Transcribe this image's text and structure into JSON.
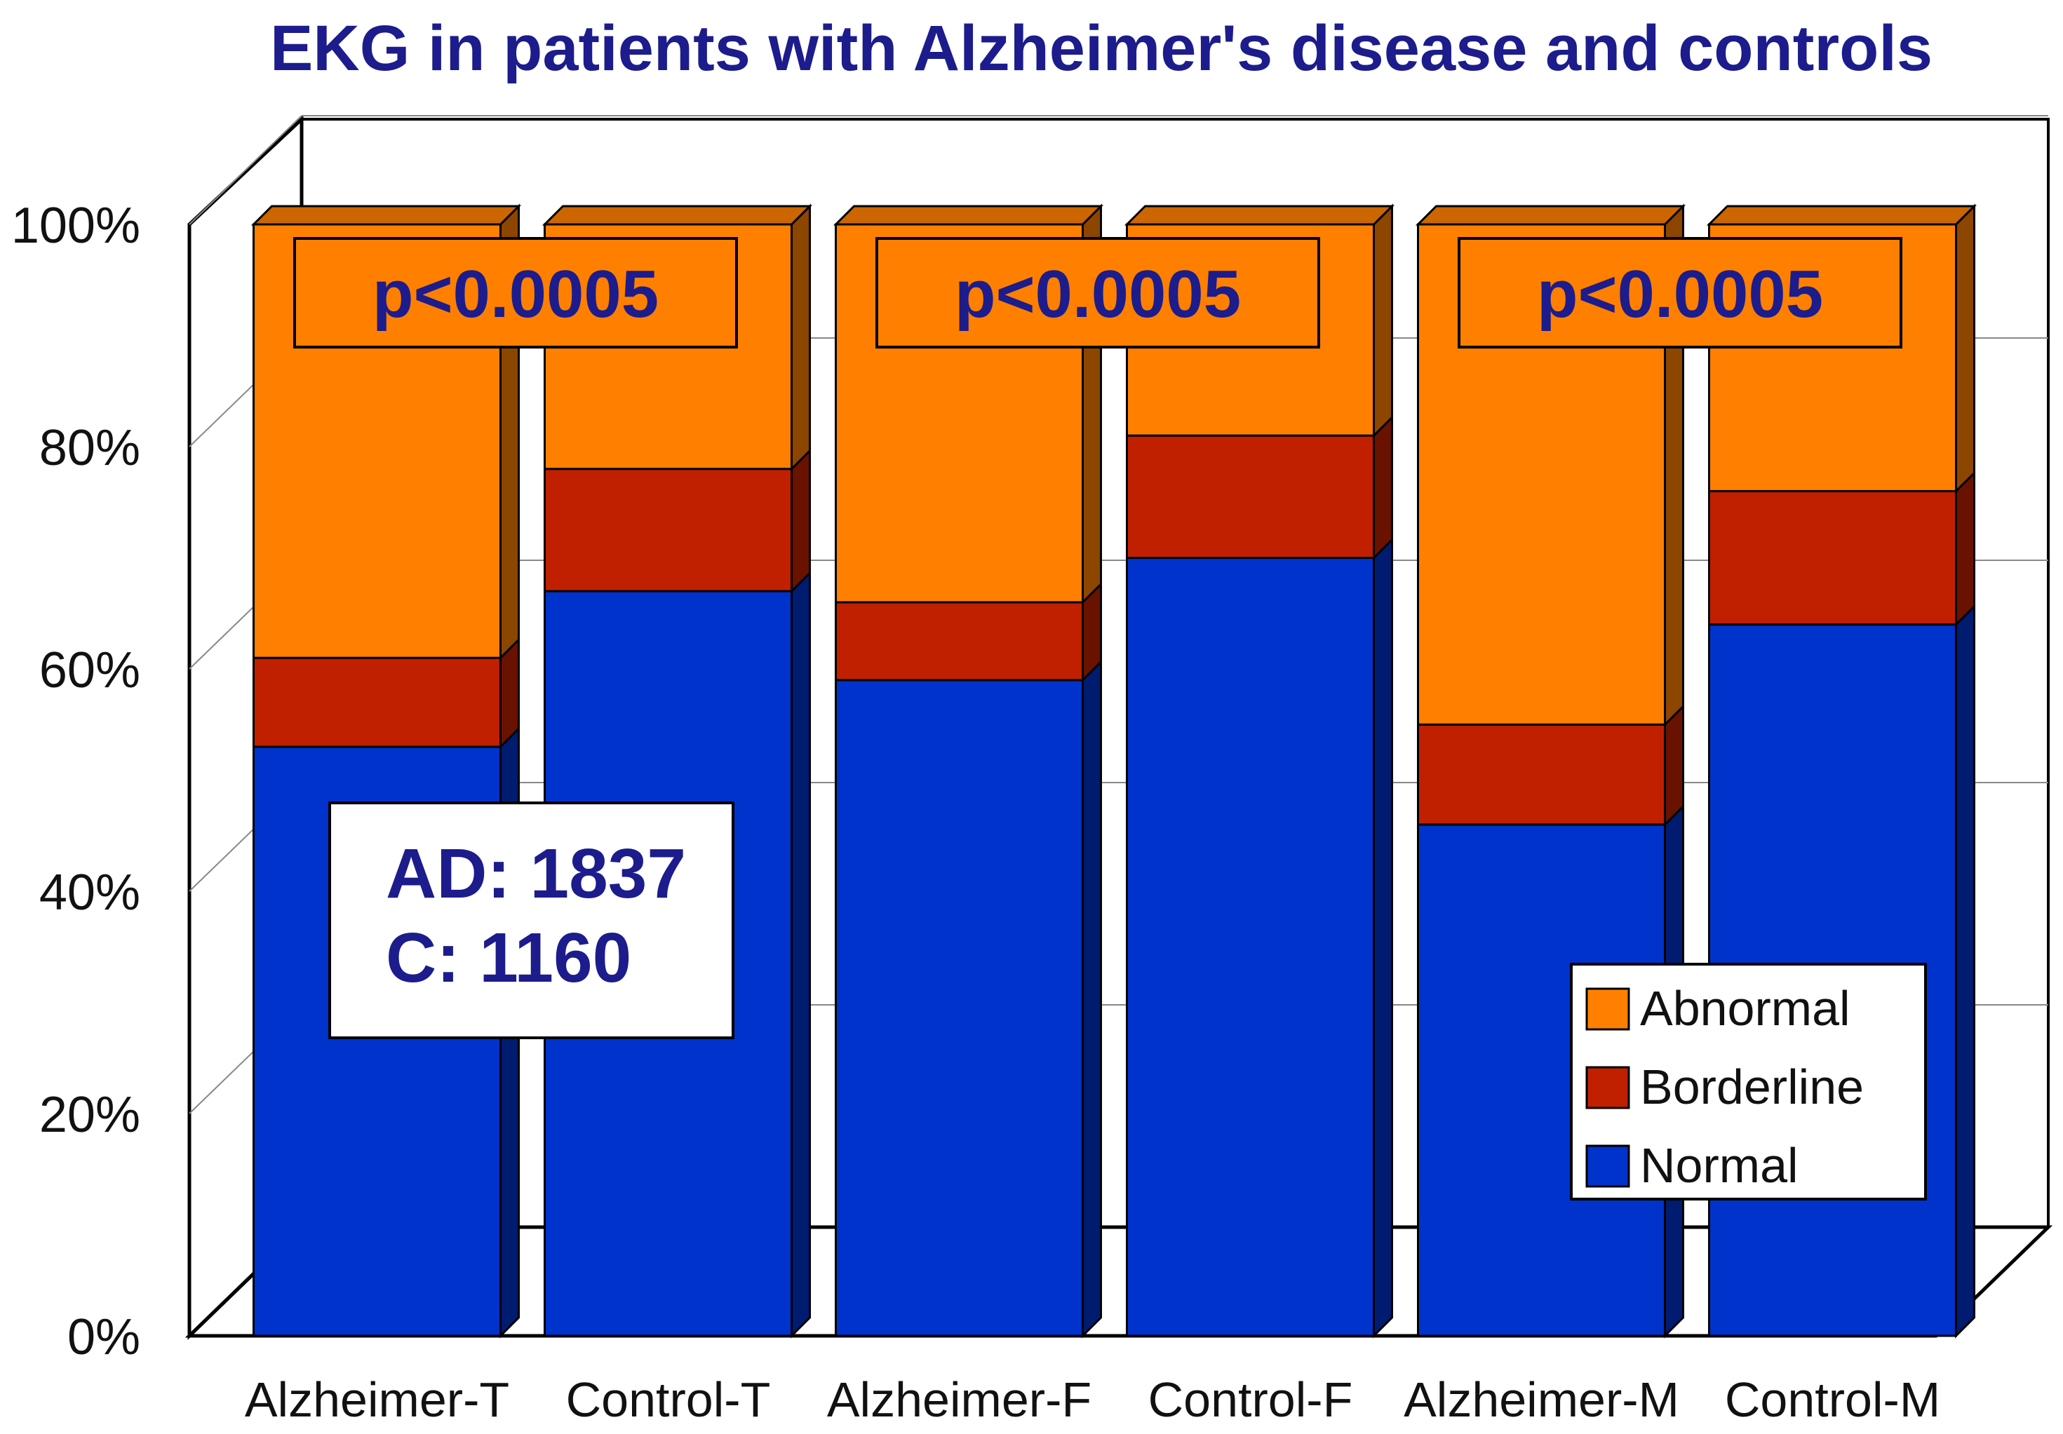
{
  "chart_data": {
    "type": "bar",
    "stacked": true,
    "percent": true,
    "title": "EKG in patients with Alzheimer's disease and controls",
    "categories": [
      "Alzheimer-T",
      "Control-T",
      "Alzheimer-F",
      "Control-F",
      "Alzheimer-M",
      "Control-M"
    ],
    "series": [
      {
        "name": "Normal",
        "color": "#0033cc",
        "values": [
          53,
          67,
          59,
          70,
          46,
          64
        ]
      },
      {
        "name": "Borderline",
        "color": "#c02000",
        "values": [
          8,
          11,
          7,
          11,
          9,
          12
        ]
      },
      {
        "name": "Abnormal",
        "color": "#ff8000",
        "values": [
          39,
          22,
          34,
          19,
          45,
          24
        ]
      }
    ],
    "yticks": [
      "0%",
      "20%",
      "40%",
      "60%",
      "80%",
      "100%"
    ],
    "ylim": [
      0,
      100
    ],
    "grid": true,
    "legend": {
      "position": "bottom-right",
      "order": [
        "Abnormal",
        "Borderline",
        "Normal"
      ]
    },
    "annotations": [
      {
        "text": "p<0.0005",
        "pair": [
          "Alzheimer-T",
          "Control-T"
        ]
      },
      {
        "text": "p<0.0005",
        "pair": [
          "Alzheimer-F",
          "Control-F"
        ]
      },
      {
        "text": "p<0.0005",
        "pair": [
          "Alzheimer-M",
          "Control-M"
        ]
      }
    ],
    "sample_note": [
      "AD: 1837",
      "C: 1160"
    ]
  }
}
